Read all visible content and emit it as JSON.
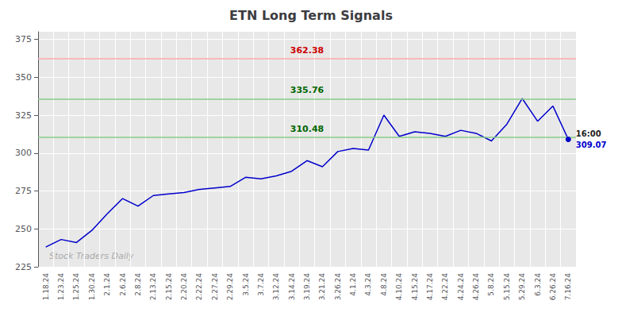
{
  "chart_data": {
    "type": "line",
    "title": "ETN Long Term Signals",
    "categories": [
      "1.18.24",
      "1.23.24",
      "1.25.24",
      "1.30.24",
      "2.1.24",
      "2.6.24",
      "2.8.24",
      "2.13.24",
      "2.15.24",
      "2.20.24",
      "2.22.24",
      "2.27.24",
      "2.29.24",
      "3.5.24",
      "3.7.24",
      "3.12.24",
      "3.14.24",
      "3.19.24",
      "3.21.24",
      "3.26.24",
      "4.1.24",
      "4.3.24",
      "4.8.24",
      "4.10.24",
      "4.15.24",
      "4.17.24",
      "4.22.24",
      "4.24.24",
      "4.26.24",
      "5.8.24",
      "5.15.24",
      "5.29.24",
      "6.3.24",
      "6.26.24",
      "7.16.24"
    ],
    "values": [
      238,
      243,
      241,
      249,
      260,
      270,
      265,
      272,
      273,
      274,
      276,
      277,
      278,
      284,
      283,
      285,
      288,
      295,
      291,
      301,
      303,
      302,
      325,
      311,
      314,
      313,
      311,
      315,
      313,
      308,
      319,
      336,
      321,
      331,
      309.07
    ],
    "color": "#0000cc",
    "ylim": [
      225,
      380
    ],
    "yticks": [
      225,
      250,
      275,
      300,
      325,
      350,
      375
    ],
    "grid": true,
    "hlines": [
      {
        "value": 362.38,
        "label": "362.38",
        "color": "#ffaaaa"
      },
      {
        "value": 335.76,
        "label": "335.76",
        "color": "#88cc88"
      },
      {
        "value": 310.48,
        "label": "310.48",
        "color": "#88cc88"
      }
    ],
    "last_label": "16:00",
    "last_value_label": "309.07",
    "watermark": "Stock Traders Daily"
  }
}
